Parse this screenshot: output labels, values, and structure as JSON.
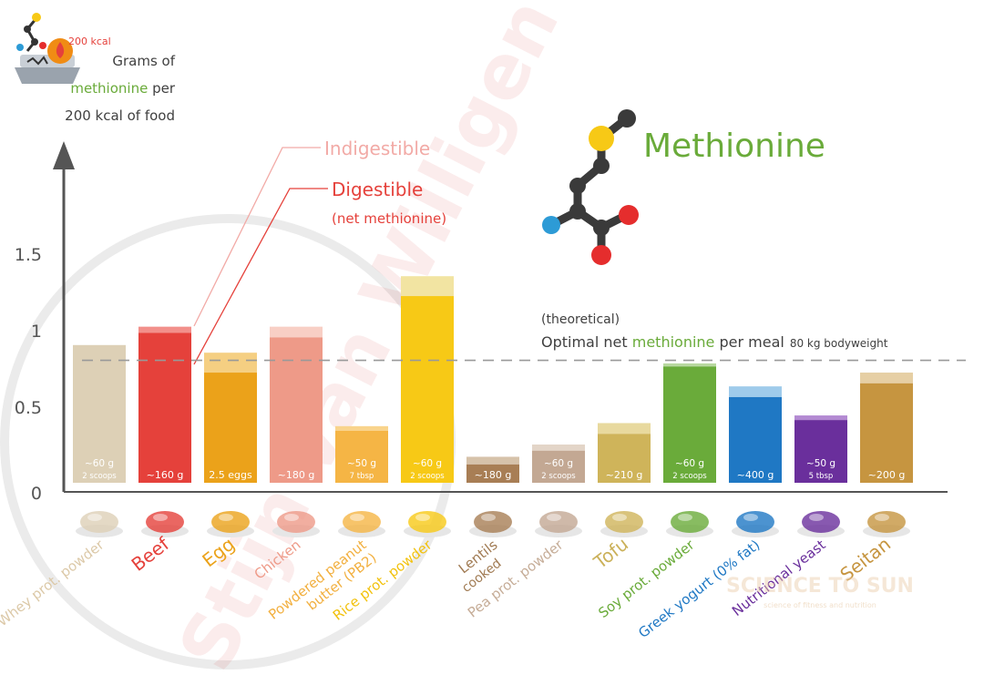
{
  "header": {
    "kcal_badge": "200 kcal",
    "ylabel_line1": "Grams of",
    "ylabel_line2_word": "methionine",
    "ylabel_line2_rest": " per",
    "ylabel_line3": "200 kcal of food"
  },
  "legend": {
    "indigestible": "Indigestible",
    "digestible": "Digestible",
    "digestible_note": "(net methionine)"
  },
  "molecule_title": "Methionine",
  "reference": {
    "line1": "(theoretical)",
    "prefix": "Optimal net ",
    "word": "methionine",
    "suffix": " per meal",
    "note": "80 kg bodyweight",
    "value": 0.8
  },
  "watermarks": {
    "author": "Stijn van Willigen",
    "brand": "SCIENCE TO SUN",
    "brand_sub": "science of fitness and nutrition"
  },
  "colors": {
    "text": "#404040",
    "green": "#6aab3a",
    "red": "#e5413b",
    "pink": "#f2aaa6",
    "axis": "#555555"
  },
  "chart_data": {
    "type": "bar",
    "ylim": [
      0,
      2.0
    ],
    "yticks": [
      {
        "value": 0,
        "label": "0"
      },
      {
        "value": 0.5,
        "label": "0.5"
      },
      {
        "value": 1,
        "label": "1"
      },
      {
        "value": 1.5,
        "label": "1.5"
      }
    ],
    "grid": false,
    "legend_position": "top-left",
    "categories": [
      {
        "name": "Whey prot. powder",
        "sub": "",
        "total": 0.9,
        "net": 0.9,
        "amount": "~60 g",
        "amount2": "2 scoops",
        "color": "#ddd0b6",
        "light": "#ece3d0",
        "label_color": "#dcc9a8",
        "icon": "whey-powder-icon"
      },
      {
        "name": "Beef",
        "sub": "",
        "total": 1.02,
        "net": 0.98,
        "amount": "~160 g",
        "amount2": "",
        "color": "#e5413b",
        "light": "#f2908b",
        "label_color": "#e5413b",
        "icon": "beef-icon"
      },
      {
        "name": "Egg",
        "sub": "",
        "total": 0.85,
        "net": 0.72,
        "amount": "2.5 eggs",
        "amount2": "",
        "color": "#eba21a",
        "light": "#f5cf82",
        "label_color": "#eba21a",
        "icon": "egg-icon"
      },
      {
        "name": "Chicken",
        "sub": "",
        "total": 1.02,
        "net": 0.95,
        "amount": "~180 g",
        "amount2": "",
        "color": "#ee9a88",
        "light": "#f8cfc5",
        "label_color": "#ee9a88",
        "icon": "chicken-icon"
      },
      {
        "name": "Powdered peanut butter (PB2)",
        "sub": "",
        "total": 0.37,
        "net": 0.34,
        "amount": "~50 g",
        "amount2": "7 tbsp",
        "color": "#f5b545",
        "light": "#f9d48c",
        "label_color": "#f2b040",
        "icon": "peanut-butter-icon"
      },
      {
        "name": "Rice prot. powder",
        "sub": "",
        "total": 1.35,
        "net": 1.22,
        "amount": "~60 g",
        "amount2": "2 scoops",
        "color": "#f7c916",
        "light": "#f2e4a2",
        "label_color": "#f2c20e",
        "icon": "rice-powder-icon"
      },
      {
        "name": "Lentils",
        "sub": "cooked",
        "total": 0.17,
        "net": 0.12,
        "amount": "~180 g",
        "amount2": "",
        "color": "#a87e55",
        "light": "#d6c2aa",
        "label_color": "#a07a52",
        "icon": "lentils-icon"
      },
      {
        "name": "Pea prot. powder",
        "sub": "",
        "total": 0.25,
        "net": 0.21,
        "amount": "~60 g",
        "amount2": "2 scoops",
        "color": "#c3a893",
        "light": "#e3d5c8",
        "label_color": "#c6ad98",
        "icon": "pea-powder-icon"
      },
      {
        "name": "Tofu",
        "sub": "",
        "total": 0.39,
        "net": 0.32,
        "amount": "~210 g",
        "amount2": "",
        "color": "#cfb45a",
        "light": "#e8d99e",
        "label_color": "#cbb15a",
        "icon": "tofu-icon"
      },
      {
        "name": "Soy prot. powder",
        "sub": "",
        "total": 0.78,
        "net": 0.76,
        "amount": "~60 g",
        "amount2": "2 scoops",
        "color": "#6aab3a",
        "light": "#b8d8a0",
        "label_color": "#6aab3a",
        "icon": "soy-powder-icon"
      },
      {
        "name": "Greek yogurt (0% fat)",
        "sub": "",
        "total": 0.63,
        "net": 0.56,
        "amount": "~400 g",
        "amount2": "",
        "color": "#1f78c4",
        "light": "#9fcbeb",
        "label_color": "#1f78c4",
        "icon": "yogurt-icon"
      },
      {
        "name": "Nutritional yeast",
        "sub": "",
        "total": 0.44,
        "net": 0.41,
        "amount": "~50 g",
        "amount2": "5 tbsp",
        "color": "#6a2f9c",
        "light": "#b38ad2",
        "label_color": "#6a2f9c",
        "icon": "yeast-icon"
      },
      {
        "name": "Seitan",
        "sub": "",
        "total": 0.72,
        "net": 0.65,
        "amount": "~200 g",
        "amount2": "",
        "color": "#c69540",
        "light": "#e6cfa4",
        "label_color": "#c69540",
        "icon": "seitan-icon"
      }
    ]
  }
}
